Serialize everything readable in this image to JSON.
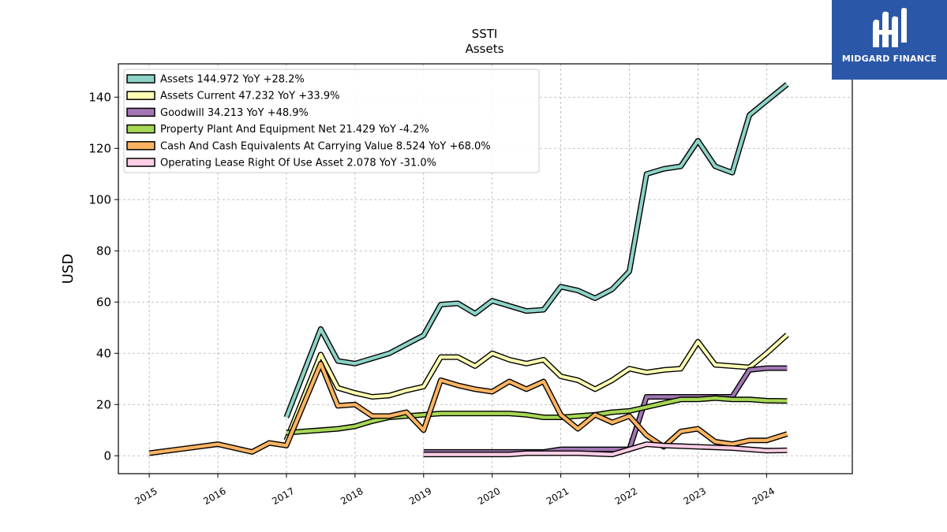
{
  "branding": {
    "name": "MIDGARD FINANCE",
    "logo_icon": "midgard-finance-logo-icon",
    "background_color": "#2b57a8"
  },
  "chart_data": {
    "type": "line",
    "title": "SSTI",
    "subtitle": "Assets",
    "xlabel": "",
    "ylabel": "USD",
    "ylim": [
      -7,
      153
    ],
    "xlim": [
      2014.55,
      2025.25
    ],
    "x_ticks": [
      "2015",
      "2016",
      "2017",
      "2018",
      "2019",
      "2020",
      "2021",
      "2022",
      "2023",
      "2024"
    ],
    "y_ticks": [
      "0",
      "20",
      "40",
      "60",
      "80",
      "100",
      "120",
      "140"
    ],
    "grid": true,
    "legend_position": "top-left",
    "series": [
      {
        "name": "Assets",
        "legend": "Assets  144.972 YoY +28.2%",
        "color": "#8dd3c7",
        "points": [
          [
            2017.0,
            15.0
          ],
          [
            2017.5,
            49.5
          ],
          [
            2017.75,
            37.0
          ],
          [
            2018.0,
            36.0
          ],
          [
            2018.5,
            40.0
          ],
          [
            2018.75,
            43.5
          ],
          [
            2019.0,
            47.0
          ],
          [
            2019.25,
            59.0
          ],
          [
            2019.5,
            59.5
          ],
          [
            2019.75,
            55.5
          ],
          [
            2020.0,
            60.5
          ],
          [
            2020.25,
            58.5
          ],
          [
            2020.5,
            56.5
          ],
          [
            2020.75,
            57.0
          ],
          [
            2021.0,
            66.0
          ],
          [
            2021.25,
            64.5
          ],
          [
            2021.5,
            61.5
          ],
          [
            2021.75,
            65.0
          ],
          [
            2022.0,
            72.0
          ],
          [
            2022.25,
            110.0
          ],
          [
            2022.5,
            112.0
          ],
          [
            2022.75,
            113.0
          ],
          [
            2023.0,
            123.0
          ],
          [
            2023.25,
            113.0
          ],
          [
            2023.5,
            110.5
          ],
          [
            2023.75,
            133.0
          ],
          [
            2024.0,
            138.5
          ],
          [
            2024.3,
            145.0
          ]
        ]
      },
      {
        "name": "Assets Current",
        "legend": "Assets Current  47.232 YoY +33.9%",
        "color": "#ffffb3",
        "points": [
          [
            2017.0,
            6.0
          ],
          [
            2017.5,
            39.5
          ],
          [
            2017.75,
            26.5
          ],
          [
            2018.0,
            24.5
          ],
          [
            2018.25,
            23.0
          ],
          [
            2018.5,
            23.5
          ],
          [
            2018.75,
            25.5
          ],
          [
            2019.0,
            27.0
          ],
          [
            2019.25,
            38.5
          ],
          [
            2019.5,
            38.5
          ],
          [
            2019.75,
            35.0
          ],
          [
            2020.0,
            40.0
          ],
          [
            2020.25,
            37.5
          ],
          [
            2020.5,
            36.0
          ],
          [
            2020.75,
            37.5
          ],
          [
            2021.0,
            31.0
          ],
          [
            2021.25,
            29.5
          ],
          [
            2021.5,
            26.0
          ],
          [
            2021.75,
            29.5
          ],
          [
            2022.0,
            34.0
          ],
          [
            2022.25,
            32.5
          ],
          [
            2022.5,
            33.5
          ],
          [
            2022.75,
            34.0
          ],
          [
            2023.0,
            44.5
          ],
          [
            2023.25,
            35.5
          ],
          [
            2023.5,
            35.0
          ],
          [
            2023.75,
            34.5
          ],
          [
            2024.0,
            40.0
          ],
          [
            2024.3,
            47.2
          ]
        ]
      },
      {
        "name": "Goodwill",
        "legend": "Goodwill  34.213 YoY +48.9%",
        "color": "#bebada",
        "stroke": "#a276b3",
        "points": [
          [
            2019.0,
            1.5
          ],
          [
            2020.75,
            1.5
          ],
          [
            2021.0,
            2.5
          ],
          [
            2021.75,
            2.5
          ],
          [
            2022.0,
            2.5
          ],
          [
            2022.25,
            23.0
          ],
          [
            2023.5,
            23.0
          ],
          [
            2023.75,
            33.5
          ],
          [
            2024.0,
            34.2
          ],
          [
            2024.3,
            34.2
          ]
        ]
      },
      {
        "name": "Property Plant And Equipment Net",
        "legend": "Property Plant And Equipment Net  21.429 YoY -4.2%",
        "color": "#a6d854",
        "points": [
          [
            2017.0,
            9.0
          ],
          [
            2017.25,
            9.5
          ],
          [
            2017.5,
            10.0
          ],
          [
            2017.75,
            10.5
          ],
          [
            2018.0,
            11.5
          ],
          [
            2018.25,
            13.5
          ],
          [
            2018.5,
            15.0
          ],
          [
            2018.75,
            15.5
          ],
          [
            2019.0,
            16.0
          ],
          [
            2019.25,
            16.5
          ],
          [
            2019.5,
            16.5
          ],
          [
            2019.75,
            16.5
          ],
          [
            2020.0,
            16.5
          ],
          [
            2020.25,
            16.5
          ],
          [
            2020.5,
            16.0
          ],
          [
            2020.75,
            15.0
          ],
          [
            2021.0,
            15.0
          ],
          [
            2021.25,
            15.5
          ],
          [
            2021.5,
            16.0
          ],
          [
            2021.75,
            17.0
          ],
          [
            2022.0,
            17.5
          ],
          [
            2022.25,
            19.0
          ],
          [
            2022.5,
            20.5
          ],
          [
            2022.75,
            22.0
          ],
          [
            2023.0,
            22.0
          ],
          [
            2023.25,
            22.5
          ],
          [
            2023.5,
            22.0
          ],
          [
            2023.75,
            22.0
          ],
          [
            2024.0,
            21.5
          ],
          [
            2024.3,
            21.4
          ]
        ]
      },
      {
        "name": "Cash And Cash Equivalents At Carrying Value",
        "legend": "Cash And Cash Equivalents At Carrying Value  8.524 YoY +68.0%",
        "color": "#fdb462",
        "points": [
          [
            2015.0,
            1.0
          ],
          [
            2016.0,
            4.5
          ],
          [
            2016.5,
            1.5
          ],
          [
            2016.75,
            5.0
          ],
          [
            2017.0,
            4.0
          ],
          [
            2017.5,
            36.0
          ],
          [
            2017.75,
            19.5
          ],
          [
            2018.0,
            20.0
          ],
          [
            2018.25,
            15.5
          ],
          [
            2018.5,
            15.5
          ],
          [
            2018.75,
            17.0
          ],
          [
            2019.0,
            10.0
          ],
          [
            2019.25,
            29.5
          ],
          [
            2019.5,
            27.5
          ],
          [
            2019.75,
            26.0
          ],
          [
            2020.0,
            25.0
          ],
          [
            2020.25,
            29.0
          ],
          [
            2020.5,
            26.0
          ],
          [
            2020.75,
            29.0
          ],
          [
            2021.0,
            16.0
          ],
          [
            2021.25,
            10.5
          ],
          [
            2021.5,
            16.0
          ],
          [
            2021.75,
            13.0
          ],
          [
            2022.0,
            15.5
          ],
          [
            2022.25,
            8.0
          ],
          [
            2022.5,
            3.5
          ],
          [
            2022.75,
            9.5
          ],
          [
            2023.0,
            10.5
          ],
          [
            2023.25,
            5.5
          ],
          [
            2023.5,
            4.5
          ],
          [
            2023.75,
            6.0
          ],
          [
            2024.0,
            6.0
          ],
          [
            2024.3,
            8.5
          ]
        ]
      },
      {
        "name": "Operating Lease Right Of Use Asset",
        "legend": "Operating Lease Right Of Use Asset  2.078 YoY -31.0%",
        "color": "#fccde5",
        "points": [
          [
            2019.0,
            0.5
          ],
          [
            2020.0,
            0.5
          ],
          [
            2020.25,
            0.5
          ],
          [
            2020.5,
            1.0
          ],
          [
            2021.0,
            1.0
          ],
          [
            2021.25,
            1.0
          ],
          [
            2021.75,
            0.5
          ],
          [
            2022.0,
            2.5
          ],
          [
            2022.25,
            4.5
          ],
          [
            2022.5,
            4.0
          ],
          [
            2023.0,
            3.5
          ],
          [
            2023.5,
            3.0
          ],
          [
            2024.0,
            2.0
          ],
          [
            2024.3,
            2.1
          ]
        ]
      }
    ]
  }
}
